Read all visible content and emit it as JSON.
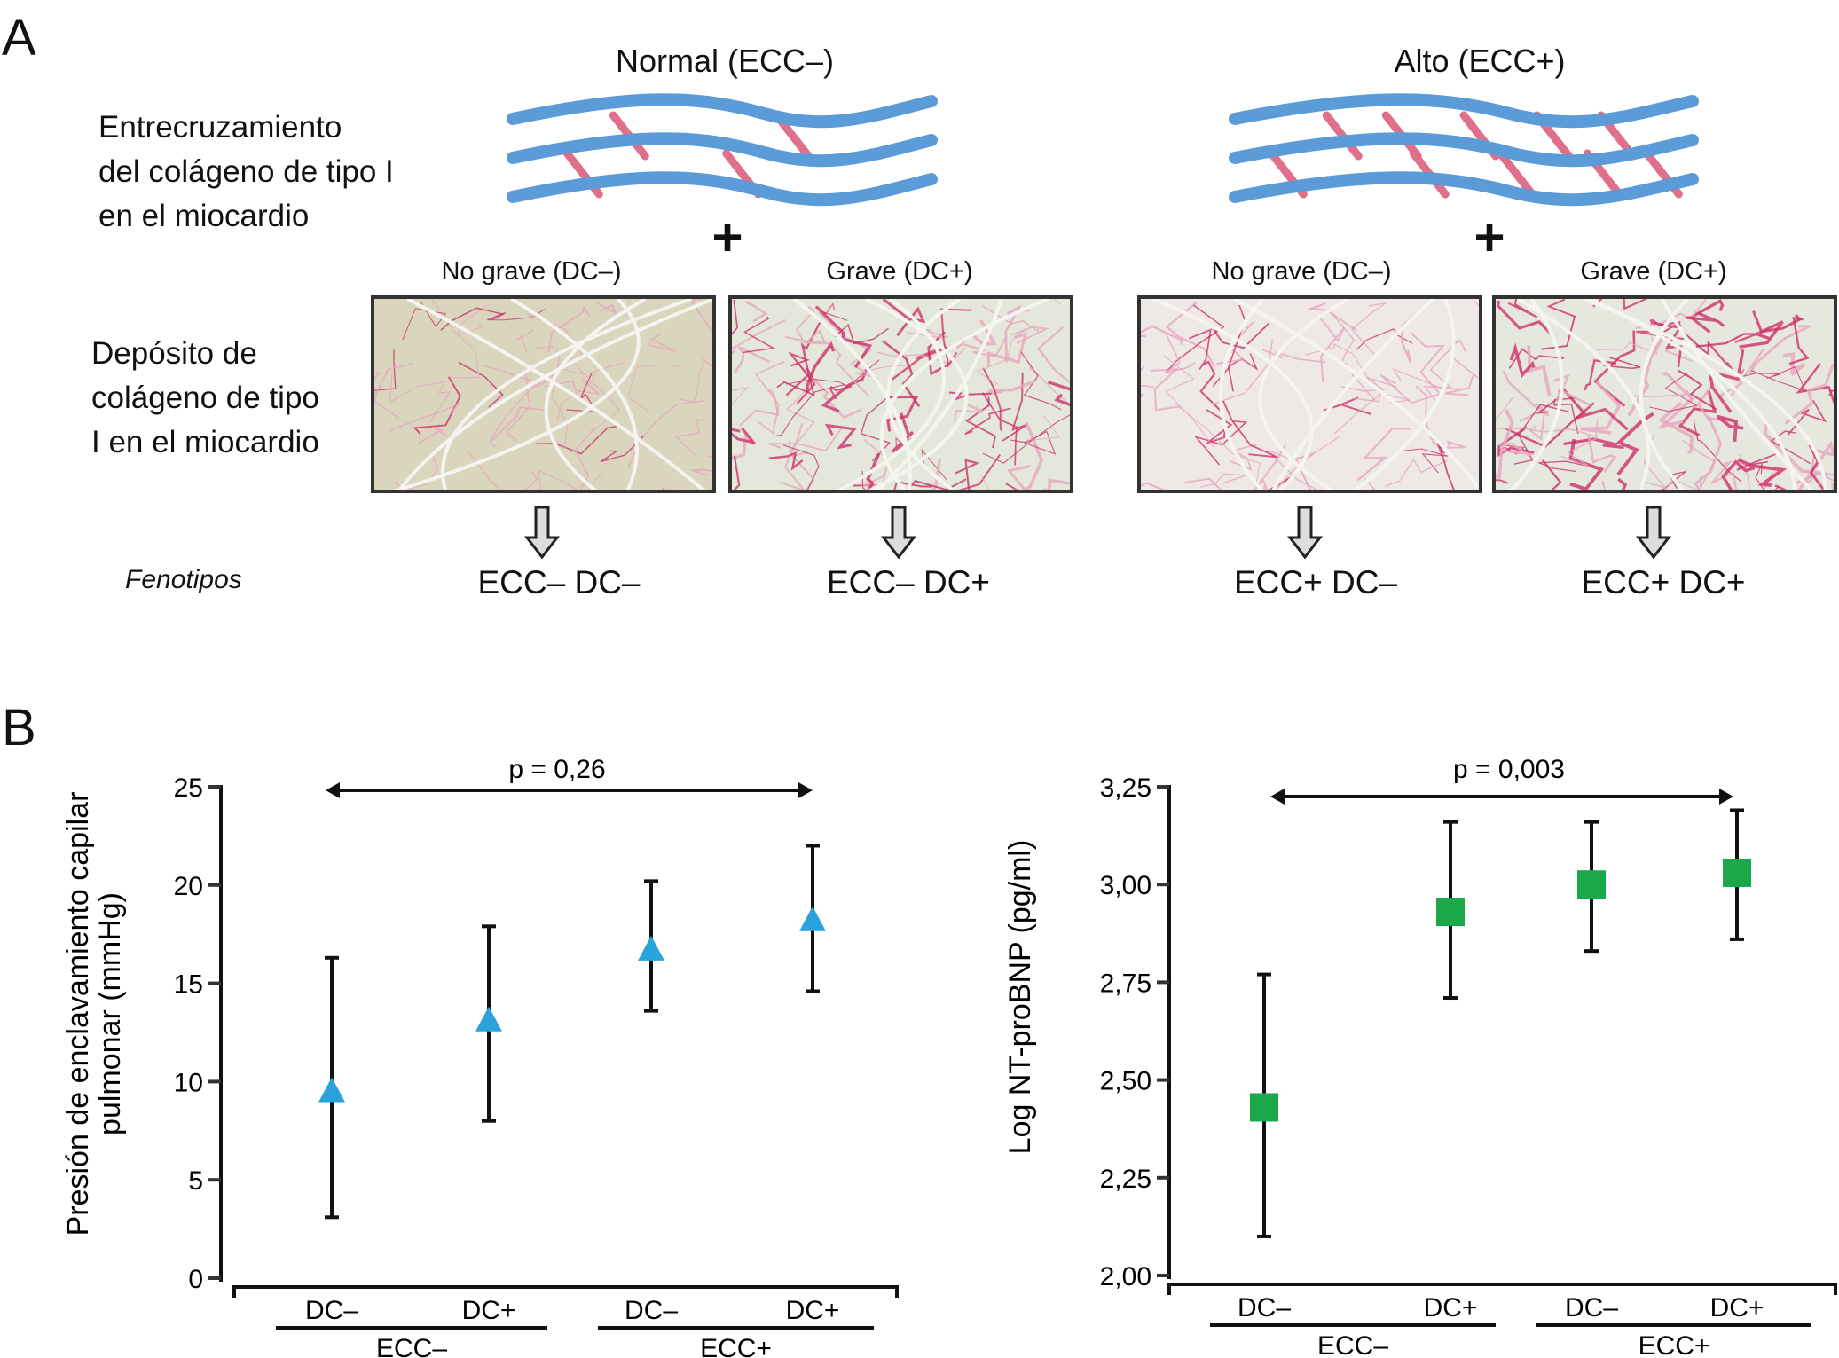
{
  "panel_a": {
    "label": "A",
    "normal_title": "Normal (ECC–)",
    "alto_title": "Alto (ECC+)",
    "crosslink_label": [
      "Entrecruzamiento",
      "del colágeno de tipo I",
      "en el miocardio"
    ],
    "deposit_label": [
      "Depósito de",
      "colágeno de tipo",
      "I en el miocardio"
    ],
    "plus": "+",
    "sublabels": [
      "No grave (DC–)",
      "Grave (DC+)",
      "No grave (DC–)",
      "Grave (DC+)"
    ],
    "phenotypes_label": "Fenotipos",
    "phenotypes": [
      "ECC– DC–",
      "ECC– DC+",
      "ECC+ DC–",
      "ECC+ DC+"
    ],
    "colors": {
      "fiber": "#5b9bd8",
      "crosslink": "#e0708a",
      "stain": "#d0306a"
    }
  },
  "panel_b": {
    "label": "B"
  },
  "chart_data": [
    {
      "type": "scatter",
      "marker": "triangle",
      "color": "#2aa3dd",
      "categories": [
        "DC–",
        "DC+",
        "DC–",
        "DC+"
      ],
      "groups": [
        "ECC–",
        "ECC+"
      ],
      "values": [
        9.5,
        13.1,
        16.7,
        18.2
      ],
      "err_low": [
        3.1,
        8.0,
        13.6,
        14.6
      ],
      "err_high": [
        16.3,
        17.9,
        20.2,
        22.0
      ],
      "ylabel": [
        "Presión de enclavamiento capilar",
        "pulmonar (mmHg)"
      ],
      "ylim": [
        0,
        25
      ],
      "yticks": [
        0,
        5,
        10,
        15,
        20,
        25
      ],
      "ytick_labels": [
        "0",
        "5",
        "10",
        "15",
        "20",
        "25"
      ],
      "annotation": "p = 0,26",
      "grid": false
    },
    {
      "type": "scatter",
      "marker": "square",
      "color": "#1aa84b",
      "categories": [
        "DC–",
        "DC+",
        "DC–",
        "DC+"
      ],
      "groups": [
        "ECC–",
        "ECC+"
      ],
      "values": [
        2.43,
        2.93,
        3.0,
        3.03
      ],
      "err_low": [
        2.1,
        2.71,
        2.83,
        2.86
      ],
      "err_high": [
        2.77,
        3.16,
        3.16,
        3.19
      ],
      "ylabel": [
        "Log NT-proBNP (pg/ml)"
      ],
      "ylim": [
        2.0,
        3.25
      ],
      "yticks": [
        2.0,
        2.25,
        2.5,
        2.75,
        3.0,
        3.25
      ],
      "ytick_labels": [
        "2,00",
        "2,25",
        "2,50",
        "2,75",
        "3,00",
        "3,25"
      ],
      "annotation": "p = 0,003",
      "grid": false
    }
  ]
}
